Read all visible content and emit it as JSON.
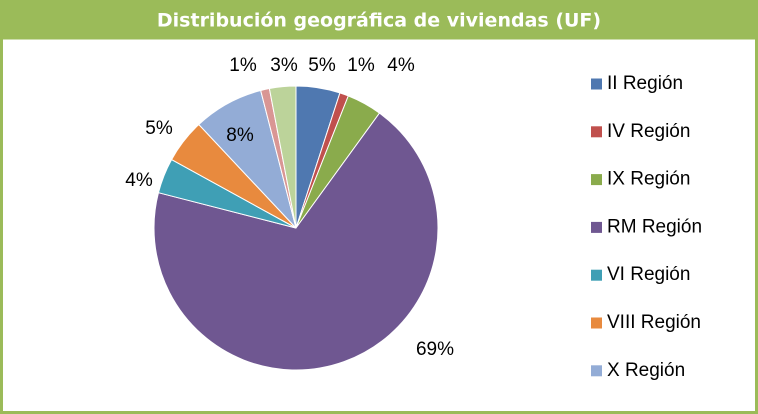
{
  "chart_data": {
    "type": "pie",
    "title": "Distribución geográfica de viviendas (UF)",
    "categories": [
      "II Región",
      "IV Región",
      "IX Región",
      "RM Región",
      "VI Región",
      "VIII Región",
      "X Región",
      null,
      null
    ],
    "values": [
      5,
      1,
      4,
      69,
      4,
      5,
      8,
      1,
      3
    ],
    "value_labels": [
      "5%",
      "1%",
      "4%",
      "69%",
      "4%",
      "5%",
      "8%",
      "1%",
      "3%"
    ],
    "colors": [
      "#4f78b0",
      "#c0504d",
      "#8aab4c",
      "#6f5791",
      "#3f9fb5",
      "#e88a3e",
      "#93acd6",
      "#d99694",
      "#bcd39a"
    ],
    "legend": "right"
  }
}
